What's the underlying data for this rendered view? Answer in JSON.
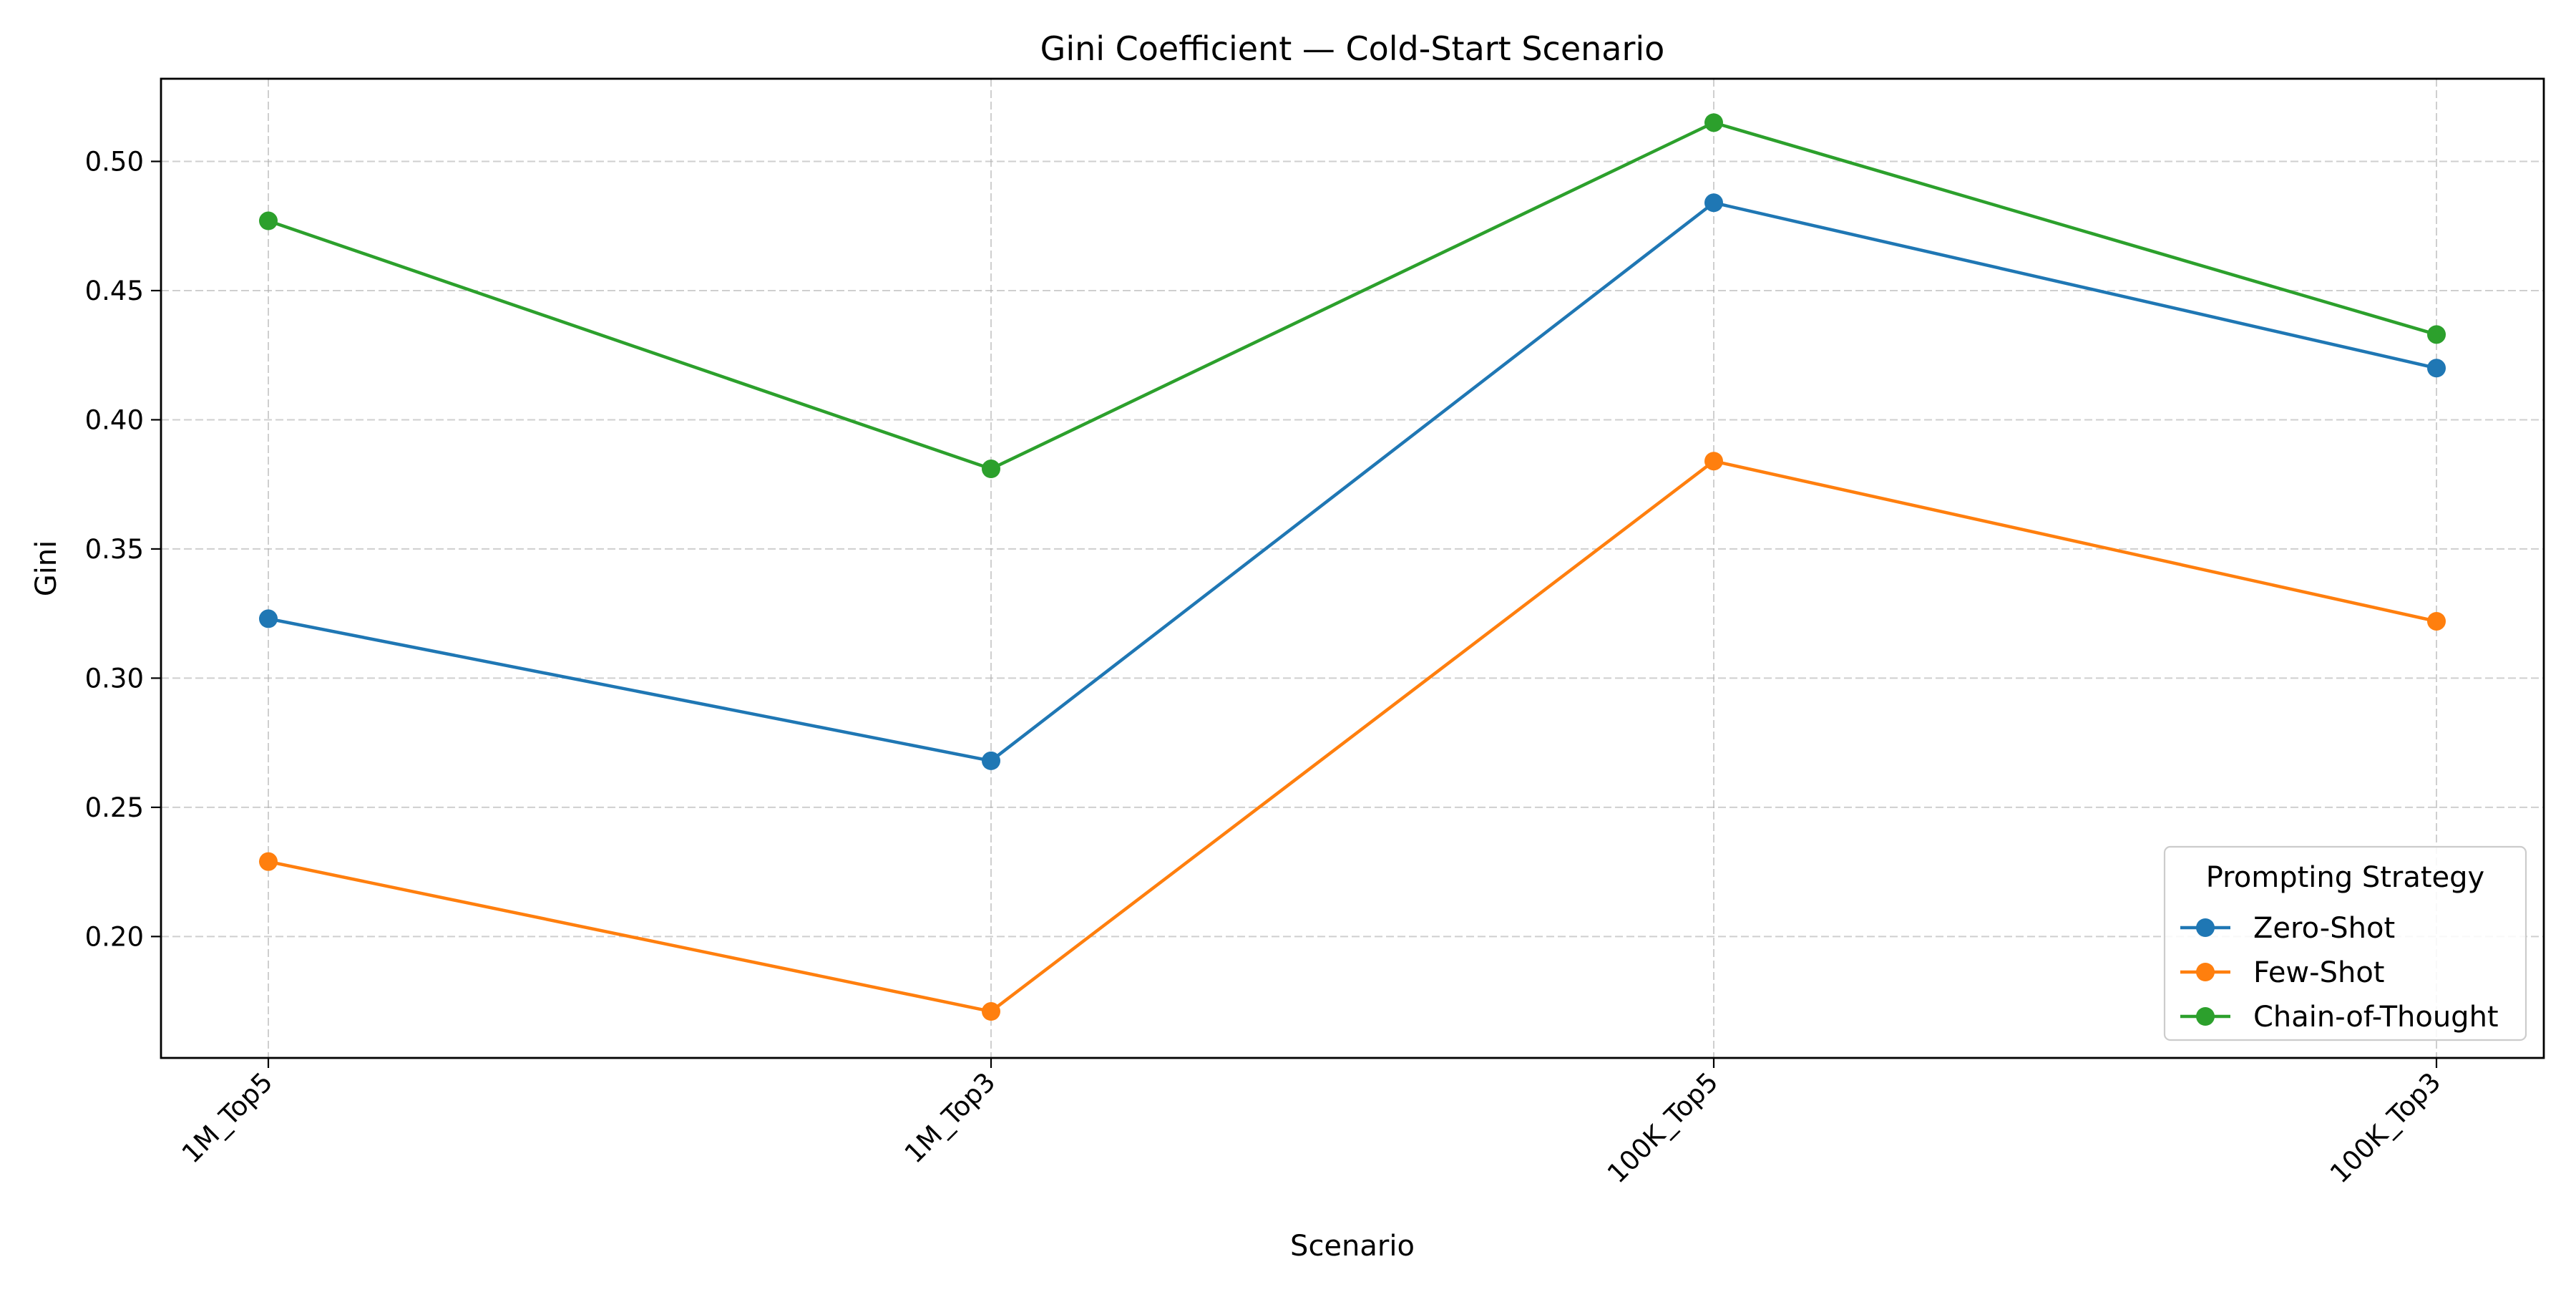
{
  "chart_data": {
    "type": "line",
    "title": "Gini Coefficient — Cold-Start Scenario",
    "xlabel": "Scenario",
    "ylabel": "Gini",
    "categories": [
      "1M_Top5",
      "1M_Top3",
      "100K_Top5",
      "100K_Top3"
    ],
    "ylim": [
      0.153,
      0.532
    ],
    "yticks": [
      0.2,
      0.25,
      0.3,
      0.35,
      0.4,
      0.45,
      0.5
    ],
    "ytick_labels": [
      "0.20",
      "0.25",
      "0.30",
      "0.35",
      "0.40",
      "0.45",
      "0.50"
    ],
    "grid": true,
    "legend": {
      "title": "Prompting Strategy",
      "placement": "lower-right"
    },
    "series": [
      {
        "name": "Zero-Shot",
        "color": "#1f77b4",
        "values": [
          0.323,
          0.268,
          0.484,
          0.42
        ]
      },
      {
        "name": "Few-Shot",
        "color": "#ff7f0e",
        "values": [
          0.229,
          0.171,
          0.384,
          0.322
        ]
      },
      {
        "name": "Chain-of-Thought",
        "color": "#2ca02c",
        "values": [
          0.477,
          0.381,
          0.515,
          0.433
        ]
      }
    ]
  }
}
